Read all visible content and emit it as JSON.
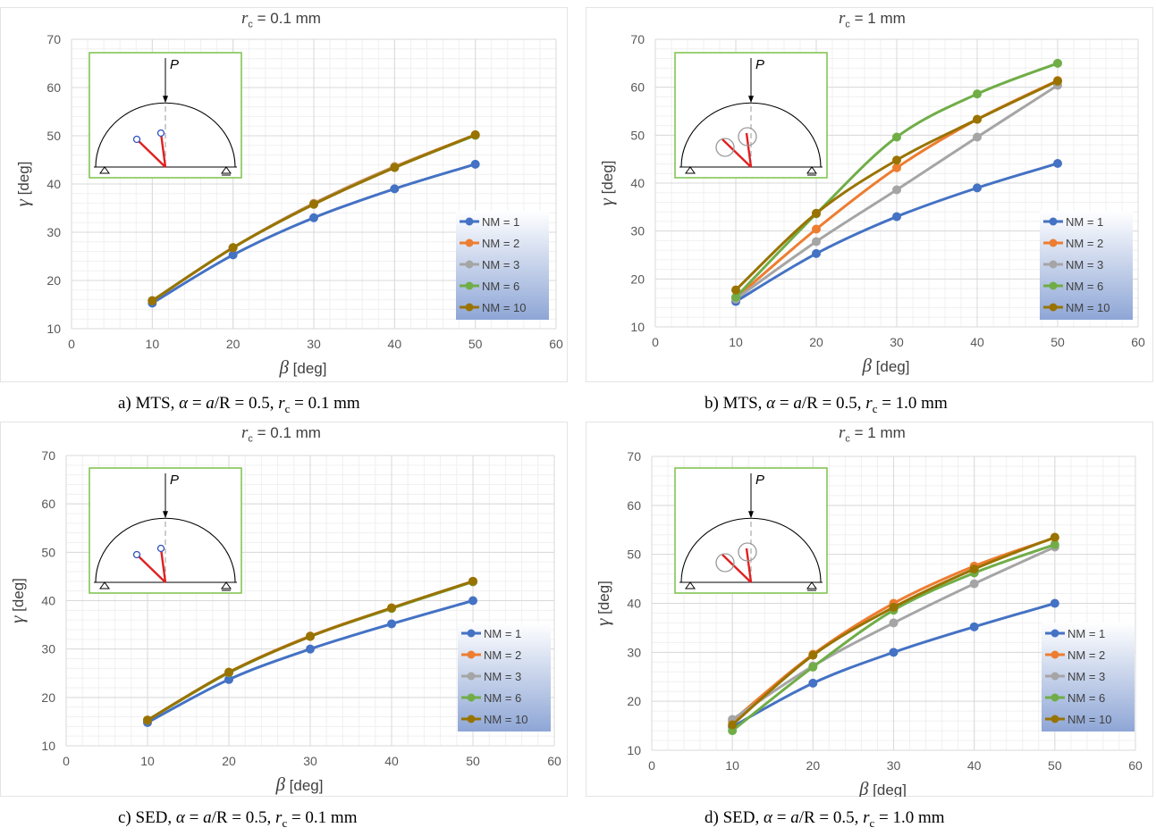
{
  "series_colors": {
    "NM = 1": "#4472c4",
    "NM = 2": "#ed7d31",
    "NM = 3": "#a5a5a5",
    "NM = 6": "#70ad47",
    "NM = 10": "#997300"
  },
  "inset_labels": {
    "load": "P"
  },
  "chart_data": [
    {
      "type": "line",
      "title": "r_c = 0.1 mm",
      "title_parts": {
        "symbol": "r",
        "subscript": "c",
        "rest": " = 0.1 mm"
      },
      "xlabel": "β [deg]",
      "ylabel": "γ [deg]",
      "xlabel_parts": {
        "symbol": "β",
        "rest": " [deg]"
      },
      "ylabel_parts": {
        "symbol": "γ",
        "rest": " [deg]"
      },
      "xlim": [
        0,
        60
      ],
      "ylim": [
        10,
        70
      ],
      "xticks": [
        "0",
        "10",
        "20",
        "30",
        "40",
        "50",
        "60"
      ],
      "yticks": [
        "10",
        "20",
        "30",
        "40",
        "50",
        "60",
        "70"
      ],
      "x": [
        10,
        20,
        30,
        40,
        50
      ],
      "legend_position": "right",
      "series": [
        {
          "name": "NM = 1",
          "values": [
            15.3,
            25.3,
            33.0,
            39.0,
            44.1
          ]
        },
        {
          "name": "NM = 2",
          "values": [
            15.8,
            26.8,
            36.0,
            43.6,
            50.2
          ]
        },
        {
          "name": "NM = 3",
          "values": [
            15.8,
            26.8,
            35.9,
            43.5,
            50.1
          ]
        },
        {
          "name": "NM = 6",
          "values": [
            15.8,
            26.8,
            35.8,
            43.4,
            50.1
          ]
        },
        {
          "name": "NM = 10",
          "values": [
            15.8,
            26.8,
            35.8,
            43.4,
            50.2
          ]
        }
      ],
      "caption": {
        "method": "a) MTS, ",
        "alpha": "α",
        "eq1": " = ",
        "a": "a",
        "div": "/R = 0.5, ",
        "r": "r",
        "c": "c",
        "rest": " = 0.1 mm"
      }
    },
    {
      "type": "line",
      "title": "r_c = 1 mm",
      "title_parts": {
        "symbol": "r",
        "subscript": "c",
        "rest": " = 1 mm"
      },
      "xlabel": "β [deg]",
      "ylabel": "γ [deg]",
      "xlabel_parts": {
        "symbol": "β",
        "rest": " [deg]"
      },
      "ylabel_parts": {
        "symbol": "γ",
        "rest": " [deg]"
      },
      "xlim": [
        0,
        60
      ],
      "ylim": [
        10,
        70
      ],
      "xticks": [
        "0",
        "10",
        "20",
        "30",
        "40",
        "50",
        "60"
      ],
      "yticks": [
        "10",
        "20",
        "30",
        "40",
        "50",
        "60",
        "70"
      ],
      "x": [
        10,
        20,
        30,
        40,
        50
      ],
      "legend_position": "right",
      "series": [
        {
          "name": "NM = 1",
          "values": [
            15.3,
            25.3,
            33.0,
            39.0,
            44.1
          ]
        },
        {
          "name": "NM = 2",
          "values": [
            16.0,
            30.4,
            43.2,
            53.3,
            61.4
          ]
        },
        {
          "name": "NM = 3",
          "values": [
            15.8,
            27.8,
            38.6,
            49.6,
            60.4
          ]
        },
        {
          "name": "NM = 6",
          "values": [
            16.2,
            33.6,
            49.6,
            58.6,
            65.0
          ]
        },
        {
          "name": "NM = 10",
          "values": [
            17.7,
            33.7,
            44.8,
            53.3,
            61.3
          ]
        }
      ],
      "caption": {
        "method": "b) MTS, ",
        "alpha": "α",
        "eq1": " = ",
        "a": "a",
        "div": "/R = 0.5, ",
        "r": "r",
        "c": "c",
        "rest": " = 1.0 mm"
      }
    },
    {
      "type": "line",
      "title": "r_c = 0.1 mm",
      "title_parts": {
        "symbol": "r",
        "subscript": "c",
        "rest": " = 0.1 mm"
      },
      "xlabel": "β [deg]",
      "ylabel": "γ [deg]",
      "xlabel_parts": {
        "symbol": "β",
        "rest": " [deg]"
      },
      "ylabel_parts": {
        "symbol": "γ",
        "rest": " [deg]"
      },
      "xlim": [
        0,
        60
      ],
      "ylim": [
        10,
        70
      ],
      "xticks": [
        "0",
        "10",
        "20",
        "30",
        "40",
        "50",
        "60"
      ],
      "yticks": [
        "10",
        "20",
        "30",
        "40",
        "50",
        "60",
        "70"
      ],
      "x": [
        10,
        20,
        30,
        40,
        50
      ],
      "legend_position": "right",
      "series": [
        {
          "name": "NM = 1",
          "values": [
            14.8,
            23.7,
            30.0,
            35.2,
            40.0
          ]
        },
        {
          "name": "NM = 2",
          "values": [
            15.3,
            25.2,
            32.7,
            38.5,
            44.0
          ]
        },
        {
          "name": "NM = 3",
          "values": [
            15.3,
            25.1,
            32.6,
            38.4,
            43.9
          ]
        },
        {
          "name": "NM = 6",
          "values": [
            15.3,
            25.1,
            32.6,
            38.4,
            43.9
          ]
        },
        {
          "name": "NM = 10",
          "values": [
            15.3,
            25.2,
            32.6,
            38.5,
            44.0
          ]
        }
      ],
      "caption": {
        "method": "c) SED, ",
        "alpha": "α",
        "eq1": " = ",
        "a": "a",
        "div": "/R = 0.5, ",
        "r": "r",
        "c": "c",
        "rest": " = 0.1 mm"
      }
    },
    {
      "type": "line",
      "title": "r_c = 1 mm",
      "title_parts": {
        "symbol": "r",
        "subscript": "c",
        "rest": " = 1 mm"
      },
      "xlabel": "β [deg]",
      "ylabel": "γ [deg]",
      "xlabel_parts": {
        "symbol": "β",
        "rest": " [deg]"
      },
      "ylabel_parts": {
        "symbol": "γ",
        "rest": " [deg]"
      },
      "xlim": [
        0,
        60
      ],
      "ylim": [
        10,
        70
      ],
      "xticks": [
        "0",
        "10",
        "20",
        "30",
        "40",
        "50",
        "60"
      ],
      "yticks": [
        "10",
        "20",
        "30",
        "40",
        "50",
        "60",
        "70"
      ],
      "x": [
        10,
        20,
        30,
        40,
        50
      ],
      "legend_position": "right",
      "series": [
        {
          "name": "NM = 1",
          "values": [
            14.8,
            23.7,
            30.0,
            35.2,
            40.0
          ]
        },
        {
          "name": "NM = 2",
          "values": [
            16.0,
            29.6,
            40.0,
            47.6,
            53.4
          ]
        },
        {
          "name": "NM = 3",
          "values": [
            16.3,
            27.2,
            36.0,
            44.0,
            51.5
          ]
        },
        {
          "name": "NM = 6",
          "values": [
            14.0,
            27.0,
            38.6,
            46.2,
            52.0
          ]
        },
        {
          "name": "NM = 10",
          "values": [
            15.2,
            29.4,
            39.2,
            47.0,
            53.5
          ]
        }
      ],
      "caption": {
        "method": "d) SED, ",
        "alpha": "α",
        "eq1": " = ",
        "a": "a",
        "div": "/R = 0.5, ",
        "r": "r",
        "c": "c",
        "rest": " = 1.0 mm"
      }
    }
  ]
}
